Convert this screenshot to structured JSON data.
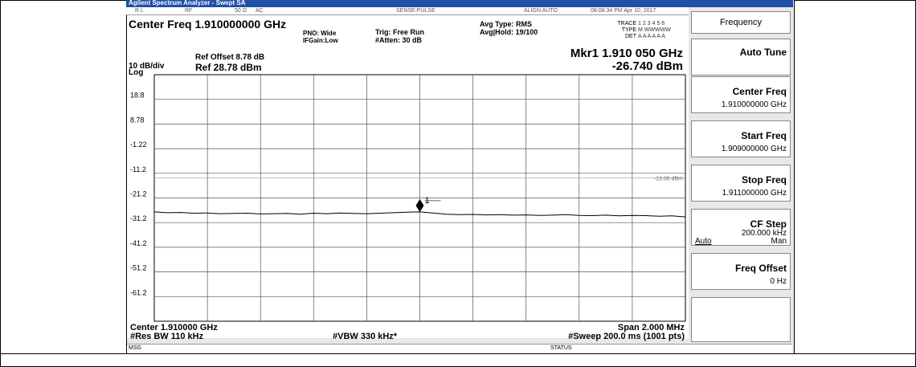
{
  "window": {
    "title": "Agilent Spectrum Analyzer - Swept SA"
  },
  "status_bar": {
    "items": [
      "R L",
      "RF",
      "50 Ω",
      "AC",
      "SENSE:PULSE",
      "ALIGN AUTO",
      "08:08:34 PM Apr 10, 2017"
    ]
  },
  "settings": {
    "center_freq": "Center Freq 1.910000000 GHz",
    "pno": "PNO: Wide",
    "ifgain": "IFGain:Low",
    "trig": "Trig: Free Run",
    "atten": "#Atten: 30 dB",
    "avg_type": "Avg Type: RMS",
    "avg_hold": "Avg|Hold: 19/100",
    "trace_rows": [
      [
        "TRACE",
        "1 2 3 4 5 6"
      ],
      [
        "TYPE",
        "M WWWWW"
      ],
      [
        "DET",
        "A A A A A A"
      ]
    ]
  },
  "plot": {
    "ref_offset": "Ref Offset 8.78 dB",
    "scale": "10 dB/div",
    "scale_type": "Log",
    "ref_level": "Ref 28.78 dBm",
    "marker": {
      "freq": "Mkr1 1.910 050 GHz",
      "level": "-26.740 dBm",
      "label": "1"
    },
    "ylim": [
      -71.22,
      28.78
    ],
    "yticks": [
      {
        "value": 18.78,
        "label": "18.8"
      },
      8.78,
      -1.22,
      {
        "value": -11.22,
        "label": "-11.2"
      },
      {
        "value": -21.22,
        "label": "-21.2"
      },
      {
        "value": -31.22,
        "label": "-31.2"
      },
      {
        "value": -41.22,
        "label": "-41.2"
      },
      {
        "value": -51.22,
        "label": "-51.2"
      },
      {
        "value": -61.22,
        "label": "-61.2"
      }
    ],
    "display_line": {
      "value": -13,
      "label": "-13.00 dBm"
    },
    "trace": [
      -26.9,
      -27.2,
      -27.1,
      -27.4,
      -27.3,
      -27.6,
      -27.5,
      -27.4,
      -27.7,
      -27.6,
      -27.5,
      -27.8,
      -27.4,
      -27.6,
      -27.3,
      -27.5,
      -27.6,
      -27.4,
      -27.2,
      -27.0,
      -26.9,
      -27.3,
      -27.8,
      -28.0,
      -27.9,
      -28.1,
      -28.0,
      -28.2,
      -28.1,
      -28.3,
      -28.2,
      -28.0,
      -28.3,
      -28.4,
      -28.2,
      -28.5,
      -28.3,
      -28.4,
      -28.6,
      -28.5,
      -28.9
    ],
    "center": "Center 1.910000 GHz",
    "span": "Span 2.000 MHz",
    "res_bw": "#Res BW 110 kHz",
    "vbw": "#VBW 330 kHz*",
    "sweep": "#Sweep  200.0 ms (1001 pts)"
  },
  "footer": {
    "msg": "MSG",
    "status": "STATUS"
  },
  "softkeys": {
    "header": "Frequency",
    "keys": [
      {
        "label": "Auto Tune"
      },
      {
        "label": "Center Freq",
        "value": "1.910000000 GHz"
      },
      {
        "label": "Start Freq",
        "value": "1.909000000 GHz"
      },
      {
        "label": "Stop Freq",
        "value": "1.911000000 GHz"
      },
      {
        "label": "CF Step",
        "value": "200.000 kHz",
        "auto": "Auto",
        "man": "Man"
      },
      {
        "label": "Freq Offset",
        "value": "0 Hz"
      }
    ]
  }
}
